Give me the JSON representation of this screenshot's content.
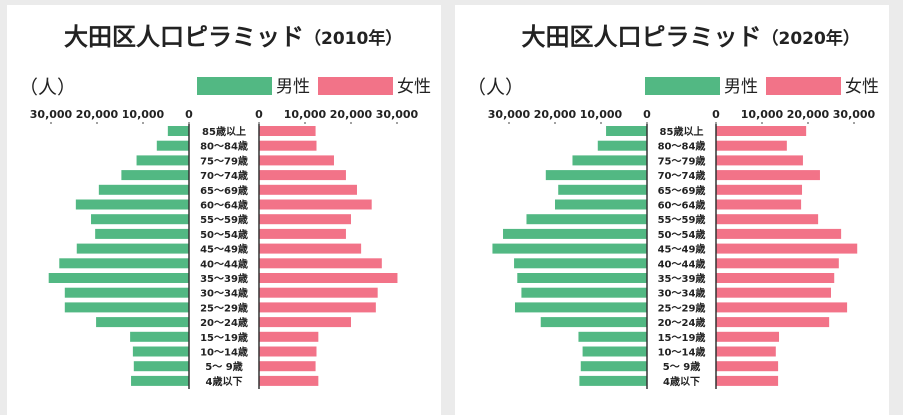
{
  "chart_data": [
    {
      "type": "pyramid",
      "title": "大田区人口ピラミッド",
      "title_year": "（2010年）",
      "unit_label": "（人）",
      "categories": [
        "85歳以上",
        "80～84歳",
        "75～79歳",
        "70～74歳",
        "65～69歳",
        "60～64歳",
        "55～59歳",
        "50～54歳",
        "45～49歳",
        "40～44歳",
        "35～39歳",
        "30～34歳",
        "25～29歳",
        "20～24歳",
        "15～19歳",
        "10～14歳",
        "5～ 9歳",
        "4歳以下"
      ],
      "series": [
        {
          "name": "男性",
          "color": "#52b883",
          "values": [
            4600,
            7000,
            11400,
            14700,
            19600,
            24600,
            21300,
            20400,
            24400,
            28200,
            30500,
            27000,
            27000,
            20200,
            12800,
            12200,
            12000,
            12600
          ]
        },
        {
          "name": "女性",
          "color": "#f27388",
          "values": [
            12300,
            12500,
            16300,
            18900,
            21300,
            24500,
            20000,
            18900,
            22200,
            26700,
            30100,
            25800,
            25400,
            20000,
            12900,
            12500,
            12300,
            12900
          ]
        }
      ],
      "xlim": [
        0,
        35000
      ],
      "xticks": [
        0,
        {
          "value": 10000,
          "label": "10,000"
        },
        {
          "value": 20000,
          "label": "20,000"
        },
        {
          "value": 30000,
          "label": "30,000"
        }
      ]
    },
    {
      "type": "pyramid",
      "title": "大田区人口ピラミッド",
      "title_year": "（2020年）",
      "unit_label": "（人）",
      "categories": [
        "85歳以上",
        "80～84歳",
        "75～79歳",
        "70～74歳",
        "65～69歳",
        "60～64歳",
        "55～59歳",
        "50～54歳",
        "45～49歳",
        "40～44歳",
        "35～39歳",
        "30～34歳",
        "25～29歳",
        "20～24歳",
        "15～19歳",
        "10～14歳",
        "5～ 9歳",
        "4歳以下"
      ],
      "series": [
        {
          "name": "男性",
          "color": "#52b883",
          "values": [
            8900,
            10700,
            16200,
            22000,
            19300,
            20000,
            26200,
            31300,
            33600,
            28900,
            28200,
            27300,
            28700,
            23100,
            14900,
            14000,
            14400,
            14700
          ]
        },
        {
          "name": "女性",
          "color": "#f27388",
          "values": [
            19600,
            15400,
            18900,
            22600,
            18700,
            18500,
            22200,
            27200,
            30700,
            26700,
            25700,
            25000,
            28500,
            24600,
            13700,
            13000,
            13500,
            13500
          ]
        }
      ],
      "xlim": [
        0,
        35000
      ],
      "xticks": [
        0,
        {
          "value": 10000,
          "label": "10,000"
        },
        {
          "value": 20000,
          "label": "20,000"
        },
        {
          "value": 30000,
          "label": "30,000"
        }
      ]
    }
  ]
}
